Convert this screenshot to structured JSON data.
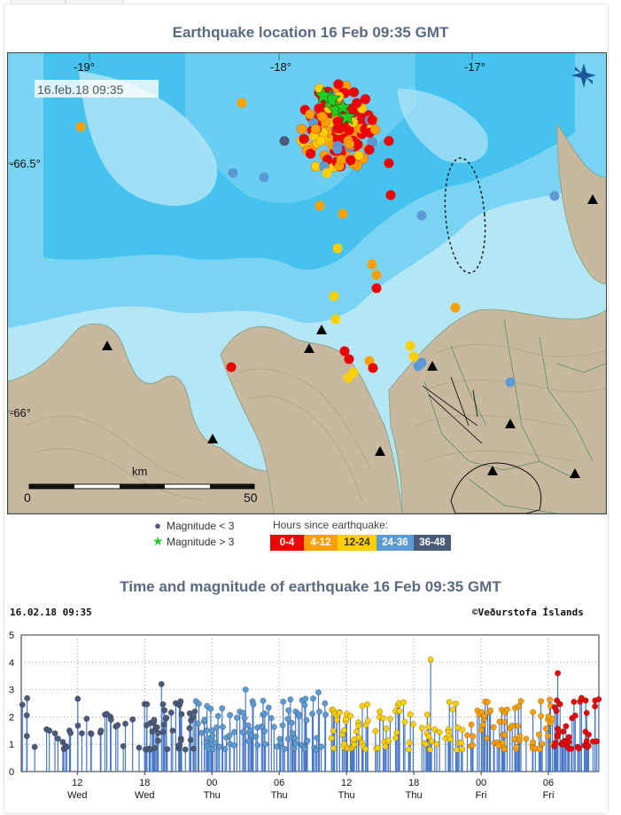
{
  "map_panel": {
    "title": "Earthquake location   16 Feb 09:35 GMT",
    "timestamp": "16.feb.18  09:35",
    "lon_labels": [
      "-19°",
      "-18°",
      "-17°"
    ],
    "lat_labels": [
      "-66.5°",
      "-66°"
    ],
    "scale": {
      "unit": "km",
      "start": "0",
      "end": "50"
    },
    "compass": "compass-rose-icon",
    "colors": {
      "sea_light": "#b4e6f6",
      "sea_mid": "#79d3f3",
      "sea_deep": "#45c3ee",
      "land": "#c8b8a0"
    }
  },
  "legend": {
    "mag_small": "Magnitude < 3",
    "mag_large": "Magnitude > 3",
    "hours_title": "Hours since earthquake:",
    "bins": [
      {
        "label": "0-4",
        "color": "#ee0000"
      },
      {
        "label": "4-12",
        "color": "#ffa000"
      },
      {
        "label": "12-24",
        "color": "#ffd000"
      },
      {
        "label": "24-36",
        "color": "#5b9bd5"
      },
      {
        "label": "36-48",
        "color": "#4a5a7a"
      }
    ]
  },
  "time_panel": {
    "title": "Time and magnitude of earthquake   16 Feb 09:35 GMT",
    "date_label": "16.02.18 09:35",
    "credit": "©Veðurstofa Íslands"
  },
  "chart_data": {
    "type": "scatter",
    "title": "Time and magnitude of earthquake   16 Feb 09:35 GMT",
    "ylim": [
      0,
      5
    ],
    "y_ticks": [
      "0",
      "1",
      "2",
      "3",
      "4",
      "5"
    ],
    "x_ticks": [
      {
        "hour": "12",
        "day": "Wed"
      },
      {
        "hour": "18",
        "day": "Wed"
      },
      {
        "hour": "00",
        "day": "Thu"
      },
      {
        "hour": "06",
        "day": "Thu"
      },
      {
        "hour": "12",
        "day": "Thu"
      },
      {
        "hour": "18",
        "day": "Thu"
      },
      {
        "hour": "00",
        "day": "Fri"
      },
      {
        "hour": "06",
        "day": "Fri"
      }
    ],
    "grid": true,
    "notable_events": [
      {
        "time": "Wed 19:30",
        "magnitude": 3.2
      },
      {
        "time": "Thu 03:00",
        "magnitude": 3.0
      },
      {
        "time": "Thu 09:30",
        "magnitude": 2.9
      },
      {
        "time": "Thu 19:30",
        "magnitude": 4.1
      },
      {
        "time": "Fri 06:50",
        "magnitude": 3.6
      },
      {
        "time": "Fri 09:20",
        "magnitude": 2.6
      }
    ]
  }
}
